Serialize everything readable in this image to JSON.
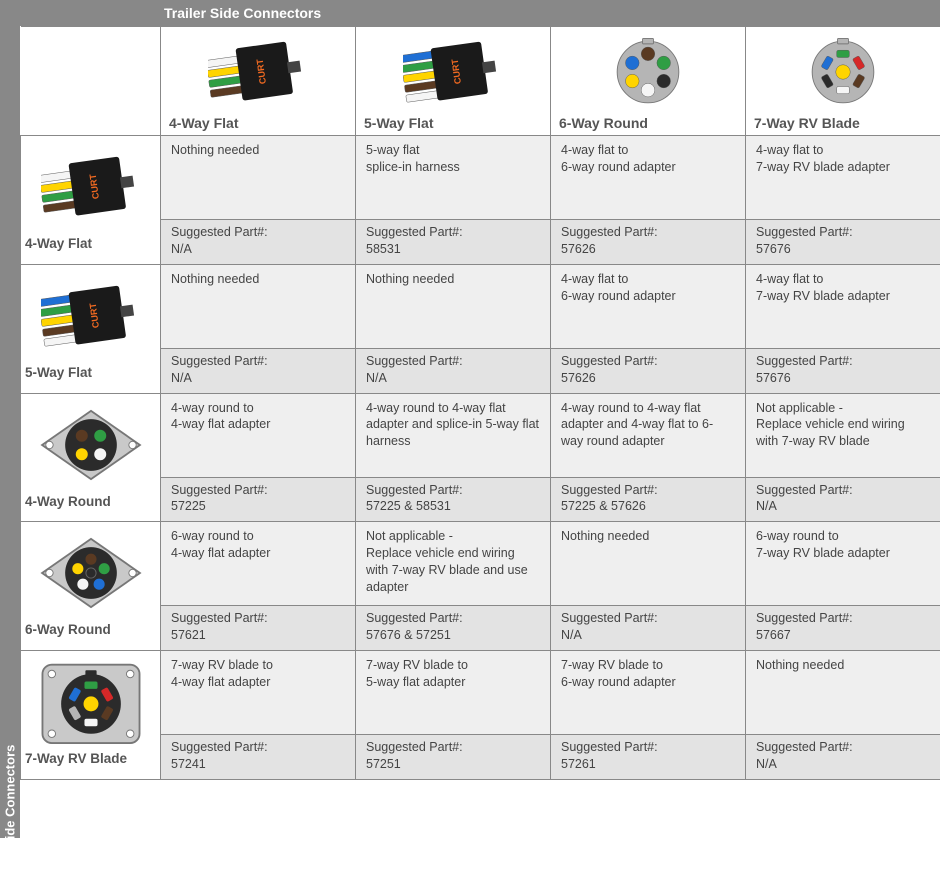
{
  "labels": {
    "side": "Vehicle Side Connectors",
    "top": "Trailer Side Connectors",
    "suggested": "Suggested Part#:"
  },
  "colors": {
    "header_bg": "#888888",
    "header_text": "#ffffff",
    "desc_bg": "#efefef",
    "part_bg": "#e3e3e3",
    "border": "#888888",
    "text": "#444444",
    "label": "#555555",
    "black": "#1a1a1a",
    "orange": "#f26a21",
    "wire_white": "#f5f5f5",
    "wire_yellow": "#ffd400",
    "wire_green": "#2f9e44",
    "wire_brown": "#5a3a22",
    "wire_blue": "#1f6fd4",
    "wire_red": "#d62828",
    "socket_grey": "#b5b5b5",
    "socket_dark": "#2b2b2b",
    "plate_grey": "#c9c9c9",
    "plate_stroke": "#777"
  },
  "trailerCols": [
    {
      "key": "4flat",
      "label": "4-Way Flat"
    },
    {
      "key": "5flat",
      "label": "5-Way Flat"
    },
    {
      "key": "6round",
      "label": "6-Way Round"
    },
    {
      "key": "7rv",
      "label": "7-Way RV Blade"
    }
  ],
  "vehicleRows": [
    {
      "key": "4flat",
      "label": "4-Way Flat"
    },
    {
      "key": "5flat",
      "label": "5-Way Flat"
    },
    {
      "key": "4round",
      "label": "4-Way Round"
    },
    {
      "key": "6round",
      "label": "6-Way Round"
    },
    {
      "key": "7rv",
      "label": "7-Way RV Blade"
    }
  ],
  "grid": {
    "4flat": {
      "4flat": {
        "desc": "Nothing needed",
        "part": "N/A"
      },
      "5flat": {
        "desc": "5-way flat\nsplice-in harness",
        "part": "58531"
      },
      "6round": {
        "desc": "4-way flat to\n6-way round adapter",
        "part": "57626"
      },
      "7rv": {
        "desc": "4-way flat to\n7-way RV blade adapter",
        "part": "57676"
      }
    },
    "5flat": {
      "4flat": {
        "desc": "Nothing needed",
        "part": "N/A"
      },
      "5flat": {
        "desc": "Nothing needed",
        "part": "N/A"
      },
      "6round": {
        "desc": "4-way flat to\n6-way round adapter",
        "part": "57626"
      },
      "7rv": {
        "desc": "4-way flat to\n7-way RV blade adapter",
        "part": "57676"
      }
    },
    "4round": {
      "4flat": {
        "desc": "4-way round to\n4-way flat adapter",
        "part": "57225"
      },
      "5flat": {
        "desc": "4-way round to 4-way flat adapter and splice-in 5-way flat harness",
        "part": "57225 & 58531"
      },
      "6round": {
        "desc": "4-way round to 4-way flat adapter and 4-way flat to 6-way round adapter",
        "part": "57225 & 57626"
      },
      "7rv": {
        "desc": "Not applicable -\nReplace vehicle end wiring with 7-way RV blade",
        "part": "N/A"
      }
    },
    "6round": {
      "4flat": {
        "desc": "6-way round to\n4-way flat adapter",
        "part": "57621"
      },
      "5flat": {
        "desc": "Not applicable -\nReplace vehicle end wiring with 7-way RV blade and use adapter",
        "part": "57676 & 57251"
      },
      "6round": {
        "desc": "Nothing needed",
        "part": "N/A"
      },
      "7rv": {
        "desc": "6-way round to\n7-way RV blade adapter",
        "part": "57667"
      }
    },
    "7rv": {
      "4flat": {
        "desc": "7-way RV blade to\n4-way flat adapter",
        "part": "57241"
      },
      "5flat": {
        "desc": "7-way RV blade to\n5-way flat adapter",
        "part": "57251"
      },
      "6round": {
        "desc": "7-way RV blade to\n6-way round adapter",
        "part": "57261"
      },
      "7rv": {
        "desc": "Nothing needed",
        "part": "N/A"
      }
    }
  }
}
